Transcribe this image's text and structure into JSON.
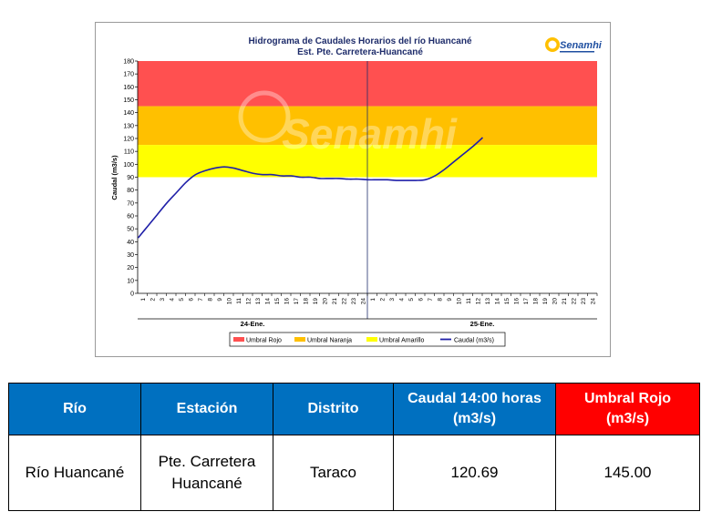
{
  "chart_data": {
    "type": "line",
    "title": "Hidrograma de Caudales Horarios del río Huancané",
    "subtitle": "Est. Pte. Carretera-Huancané",
    "logo_text": "Senamhi",
    "watermark_text": "Senamhi",
    "ylabel": "Caudal  (m3/s)",
    "ylim": [
      0,
      180
    ],
    "yticks": [
      0,
      10,
      20,
      30,
      40,
      50,
      60,
      70,
      80,
      90,
      100,
      110,
      120,
      130,
      140,
      150,
      160,
      170,
      180
    ],
    "xticks": [
      "1",
      "2",
      "3",
      "4",
      "5",
      "6",
      "7",
      "8",
      "9",
      "10",
      "11",
      "12",
      "13",
      "14",
      "15",
      "16",
      "17",
      "18",
      "19",
      "20",
      "21",
      "22",
      "23",
      "24",
      "1",
      "2",
      "3",
      "4",
      "5",
      "6",
      "7",
      "8",
      "9",
      "10",
      "11",
      "12",
      "13",
      "14",
      "15",
      "16",
      "17",
      "18",
      "19",
      "20",
      "21",
      "22",
      "23",
      "24"
    ],
    "day_labels": [
      "24-Ene.",
      "25-Ene."
    ],
    "grid": false,
    "legend_position": "bottom",
    "thresholds": [
      {
        "name": "Umbral Rojo",
        "from": 145,
        "to": 180,
        "color": "#ff5050"
      },
      {
        "name": "Umbral Naranja",
        "from": 115,
        "to": 145,
        "color": "#ffc000"
      },
      {
        "name": "Umbral Amarillo",
        "from": 90,
        "to": 115,
        "color": "#ffff00"
      }
    ],
    "series": [
      {
        "name": "Caudal (m3/s)",
        "color": "#1f1fa8",
        "values": [
          43,
          52,
          61,
          70,
          78,
          86,
          92,
          95,
          97,
          98,
          97,
          95,
          93,
          92,
          92,
          91,
          91,
          90,
          90,
          89,
          89,
          89,
          88.5,
          88.5,
          88,
          88,
          88,
          87.5,
          87.5,
          87.5,
          88,
          91,
          96,
          102,
          108,
          114,
          120.69
        ]
      }
    ]
  },
  "legend": [
    {
      "label": "Umbral Rojo",
      "color": "#ff5050"
    },
    {
      "label": "Umbral Naranja",
      "color": "#ffc000"
    },
    {
      "label": "Umbral Amarillo",
      "color": "#ffff00"
    },
    {
      "label": "Caudal (m3/s)",
      "color": "#1f1fa8"
    }
  ],
  "table": {
    "headers": [
      "Río",
      "Estación",
      "Distrito",
      "Caudal 14:00 horas (m3/s)",
      "Umbral Rojo (m3/s)"
    ],
    "row": [
      "Río Huancané",
      "Pte. Carretera Huancané",
      "Taraco",
      "120.69",
      "145.00"
    ]
  }
}
